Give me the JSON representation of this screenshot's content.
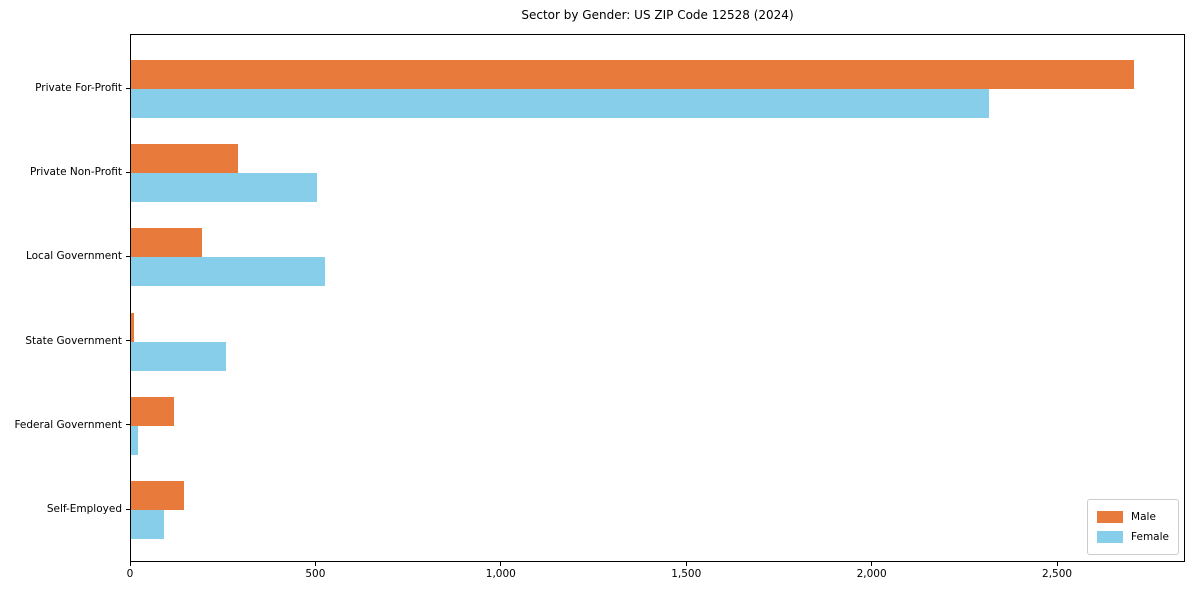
{
  "chart_data": {
    "type": "bar",
    "orientation": "horizontal",
    "title": "Sector by Gender: US ZIP Code 12528 (2024)",
    "categories": [
      "Private For-Profit",
      "Private Non-Profit",
      "Local Government",
      "State Government",
      "Federal Government",
      "Self-Employed"
    ],
    "series": [
      {
        "name": "Male",
        "color": "#e87a3c",
        "values": [
          2706,
          288,
          192,
          9,
          117,
          144
        ]
      },
      {
        "name": "Female",
        "color": "#87ceeb",
        "values": [
          2313,
          501,
          523,
          256,
          19,
          90
        ]
      }
    ],
    "xlabel": "",
    "ylabel": "",
    "xlim": [
      0,
      2845
    ],
    "x_ticks": {
      "values": [
        0,
        500,
        1000,
        1500,
        2000,
        2500
      ],
      "labels": [
        "0",
        "500",
        "1,000",
        "1,500",
        "2,000",
        "2,500"
      ]
    },
    "grid": false,
    "legend": {
      "position": "lower right"
    }
  }
}
